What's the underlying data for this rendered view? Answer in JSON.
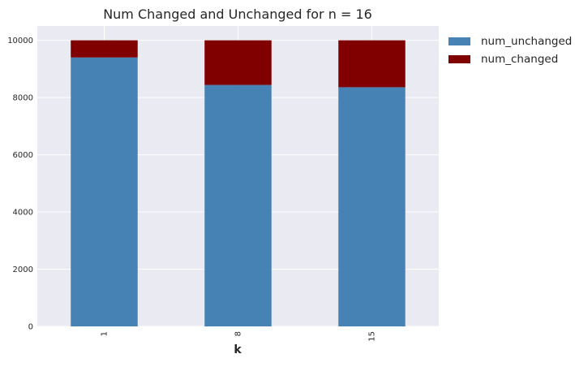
{
  "chart_data": {
    "type": "bar",
    "stacked": true,
    "title": "Num Changed and Unchanged for n = 16",
    "xlabel": "k",
    "ylabel": "",
    "categories": [
      "1",
      "8",
      "15"
    ],
    "series": [
      {
        "name": "num_unchanged",
        "color": "#4682b4",
        "values": [
          9400,
          8440,
          8360
        ]
      },
      {
        "name": "num_changed",
        "color": "#800000",
        "values": [
          600,
          1560,
          1640
        ]
      }
    ],
    "ylim": [
      0,
      10500
    ],
    "yticks": [
      "0",
      "2000",
      "4000",
      "6000",
      "8000",
      "10000"
    ],
    "ytick_values": [
      0,
      2000,
      4000,
      6000,
      8000,
      10000
    ],
    "grid": true,
    "legend_position": "outside-top-right",
    "background_color": "#eaeaf2"
  }
}
